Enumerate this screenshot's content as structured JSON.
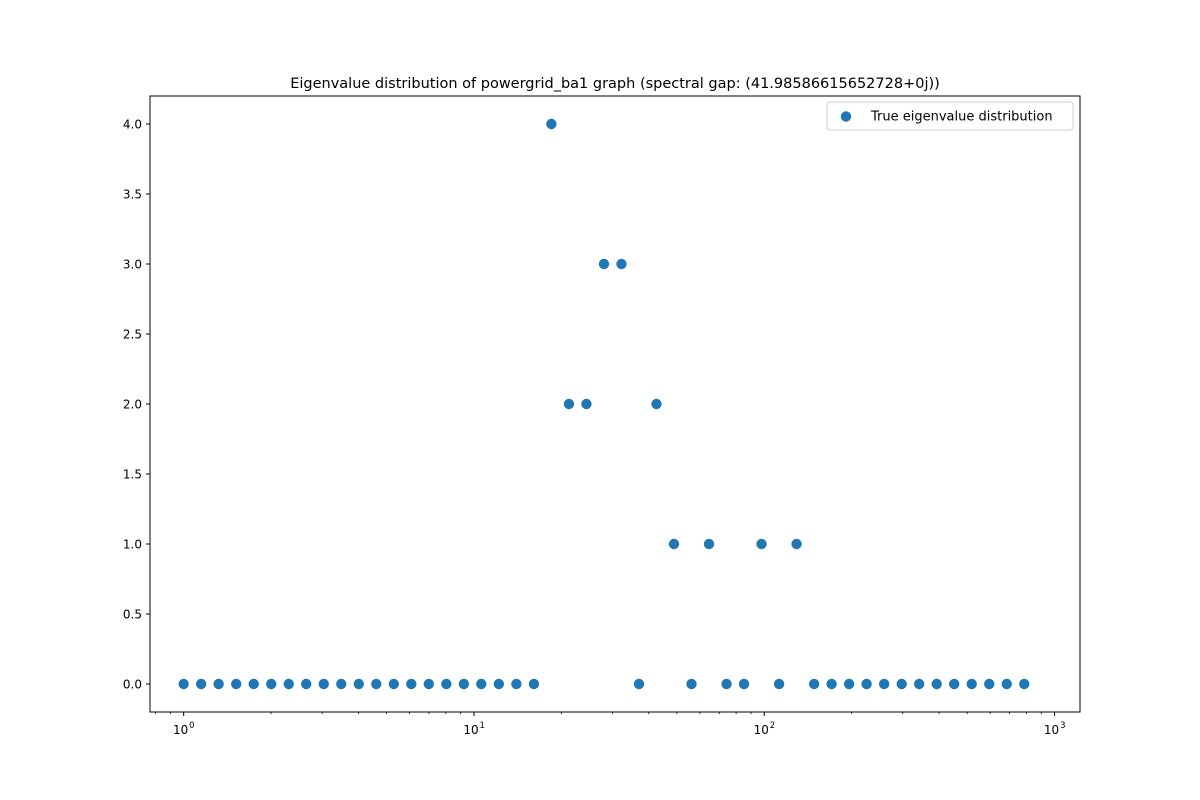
{
  "chart_data": {
    "type": "scatter",
    "title": "Eigenvalue distribution of powergrid_ba1 graph (spectral gap: (41.98586615652728+0j))",
    "xlabel": "",
    "ylabel": "",
    "xscale": "log",
    "xlim": [
      0.7657,
      1223.5
    ],
    "ylim": [
      -0.2,
      4.2
    ],
    "xticks": [
      {
        "value": 1,
        "base": "10",
        "exp": "0"
      },
      {
        "value": 10,
        "base": "10",
        "exp": "1"
      },
      {
        "value": 100,
        "base": "10",
        "exp": "2"
      },
      {
        "value": 1000,
        "base": "10",
        "exp": "3"
      }
    ],
    "yticks": [
      {
        "value": 0.0,
        "label": "0.0"
      },
      {
        "value": 0.5,
        "label": "0.5"
      },
      {
        "value": 1.0,
        "label": "1.0"
      },
      {
        "value": 1.5,
        "label": "1.5"
      },
      {
        "value": 2.0,
        "label": "2.0"
      },
      {
        "value": 2.5,
        "label": "2.5"
      },
      {
        "value": 3.0,
        "label": "3.0"
      },
      {
        "value": 3.5,
        "label": "3.5"
      },
      {
        "value": 4.0,
        "label": "4.0"
      }
    ],
    "grid": false,
    "legend_position": "top-right",
    "color": "#1f77b4",
    "series": [
      {
        "name": "True eigenvalue distribution",
        "points": [
          {
            "x": 1.0,
            "y": 0
          },
          {
            "x": 1.149,
            "y": 0
          },
          {
            "x": 1.32,
            "y": 0
          },
          {
            "x": 1.517,
            "y": 0
          },
          {
            "x": 1.743,
            "y": 0
          },
          {
            "x": 2.003,
            "y": 0
          },
          {
            "x": 2.301,
            "y": 0
          },
          {
            "x": 2.644,
            "y": 0
          },
          {
            "x": 3.038,
            "y": 0
          },
          {
            "x": 3.491,
            "y": 0
          },
          {
            "x": 4.011,
            "y": 0
          },
          {
            "x": 4.608,
            "y": 0
          },
          {
            "x": 5.295,
            "y": 0
          },
          {
            "x": 6.084,
            "y": 0
          },
          {
            "x": 6.99,
            "y": 0
          },
          {
            "x": 8.032,
            "y": 0
          },
          {
            "x": 9.229,
            "y": 0
          },
          {
            "x": 10.6,
            "y": 0
          },
          {
            "x": 12.18,
            "y": 0
          },
          {
            "x": 14.0,
            "y": 0
          },
          {
            "x": 16.09,
            "y": 0
          },
          {
            "x": 18.48,
            "y": 4
          },
          {
            "x": 21.24,
            "y": 2
          },
          {
            "x": 24.4,
            "y": 2
          },
          {
            "x": 28.04,
            "y": 3
          },
          {
            "x": 32.22,
            "y": 3
          },
          {
            "x": 37.02,
            "y": 0
          },
          {
            "x": 42.53,
            "y": 2
          },
          {
            "x": 48.87,
            "y": 1
          },
          {
            "x": 56.15,
            "y": 0
          },
          {
            "x": 64.52,
            "y": 1
          },
          {
            "x": 74.14,
            "y": 0
          },
          {
            "x": 85.18,
            "y": 0
          },
          {
            "x": 97.88,
            "y": 1
          },
          {
            "x": 112.5,
            "y": 0
          },
          {
            "x": 129.2,
            "y": 1
          },
          {
            "x": 148.5,
            "y": 0
          },
          {
            "x": 170.6,
            "y": 0
          },
          {
            "x": 196.0,
            "y": 0
          },
          {
            "x": 225.2,
            "y": 0
          },
          {
            "x": 258.8,
            "y": 0
          },
          {
            "x": 297.4,
            "y": 0
          },
          {
            "x": 341.7,
            "y": 0
          },
          {
            "x": 392.6,
            "y": 0
          },
          {
            "x": 451.1,
            "y": 0
          },
          {
            "x": 518.3,
            "y": 0
          },
          {
            "x": 595.6,
            "y": 0
          },
          {
            "x": 684.3,
            "y": 0
          },
          {
            "x": 786.3,
            "y": 0
          }
        ]
      }
    ]
  }
}
